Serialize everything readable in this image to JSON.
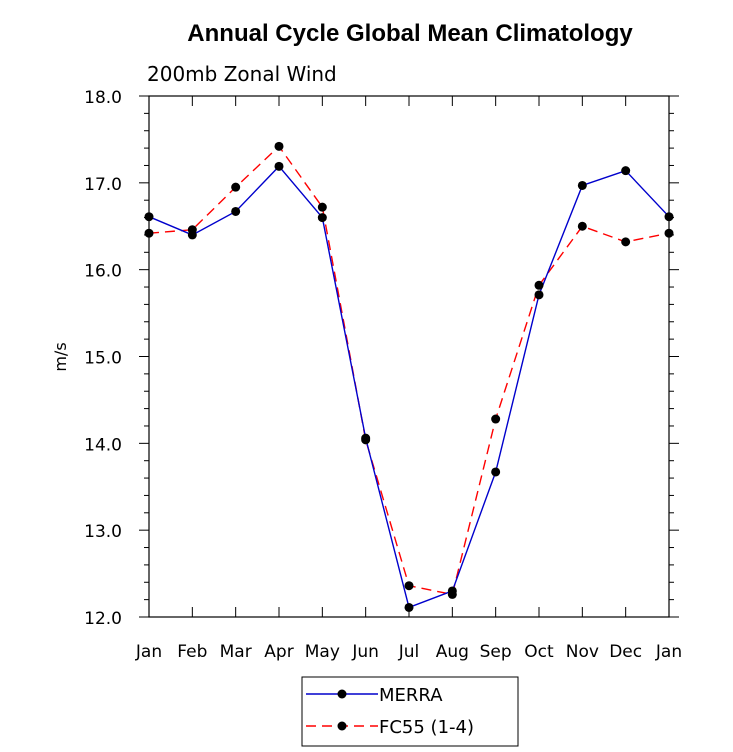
{
  "chart_data": {
    "type": "line",
    "title": "Annual Cycle Global Mean Climatology",
    "subtitle": "200mb Zonal Wind",
    "xlabel": "",
    "ylabel": "m/s",
    "categories": [
      "Jan",
      "Feb",
      "Mar",
      "Apr",
      "May",
      "Jun",
      "Jul",
      "Aug",
      "Sep",
      "Oct",
      "Nov",
      "Dec",
      "Jan"
    ],
    "ylim": [
      12.0,
      18.0
    ],
    "yticks": [
      "12.0",
      "13.0",
      "14.0",
      "15.0",
      "16.0",
      "17.0",
      "18.0"
    ],
    "grid": false,
    "legend_position": "bottom-center",
    "series": [
      {
        "name": "MERRA",
        "color": "#0000cc",
        "line_style": "solid",
        "marker": "filled-circle",
        "values": [
          16.61,
          16.4,
          16.67,
          17.19,
          16.6,
          14.06,
          12.11,
          12.3,
          13.67,
          15.71,
          16.97,
          17.14,
          16.61
        ]
      },
      {
        "name": "FC55 (1-4)",
        "color": "#ff0000",
        "line_style": "dashed",
        "marker": "filled-circle",
        "values": [
          16.42,
          16.46,
          16.95,
          17.42,
          16.72,
          14.04,
          12.36,
          12.26,
          14.28,
          15.82,
          16.5,
          16.32,
          16.42
        ]
      }
    ]
  }
}
